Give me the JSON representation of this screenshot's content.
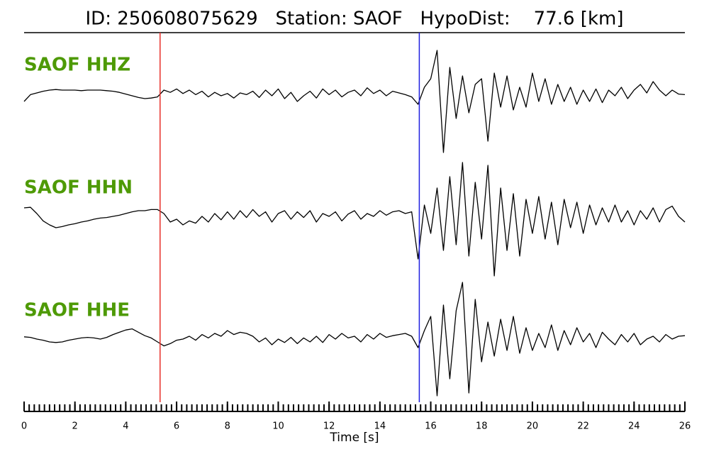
{
  "chart_data": {
    "type": "line",
    "title": "ID: 250608075629   Station: SAOF   HypoDist:    77.6 [km]",
    "xlabel": "Time [s]",
    "xlim": [
      0,
      26
    ],
    "xticks": [
      0,
      2,
      4,
      6,
      8,
      10,
      12,
      14,
      16,
      18,
      20,
      22,
      24,
      26
    ],
    "xminor": 0.2,
    "ylim": [
      -1,
      1
    ],
    "label_color": "#4e9a06",
    "vlines": [
      {
        "x": 5.35,
        "color": "#e8302a"
      },
      {
        "x": 15.55,
        "color": "#2020e0"
      }
    ],
    "x": [
      0,
      0.25,
      0.5,
      0.75,
      1,
      1.25,
      1.5,
      1.75,
      2,
      2.25,
      2.5,
      2.75,
      3,
      3.25,
      3.5,
      3.75,
      4,
      4.25,
      4.5,
      4.75,
      5,
      5.25,
      5.5,
      5.75,
      6,
      6.25,
      6.5,
      6.75,
      7,
      7.25,
      7.5,
      7.75,
      8,
      8.25,
      8.5,
      8.75,
      9,
      9.25,
      9.5,
      9.75,
      10,
      10.25,
      10.5,
      10.75,
      11,
      11.25,
      11.5,
      11.75,
      12,
      12.25,
      12.5,
      12.75,
      13,
      13.25,
      13.5,
      13.75,
      14,
      14.25,
      14.5,
      14.75,
      15,
      15.25,
      15.5,
      15.75,
      16,
      16.25,
      16.5,
      16.75,
      17,
      17.25,
      17.5,
      17.75,
      18,
      18.25,
      18.5,
      18.75,
      19,
      19.25,
      19.5,
      19.75,
      20,
      20.25,
      20.5,
      20.75,
      21,
      21.25,
      21.5,
      21.75,
      22,
      22.25,
      22.5,
      22.75,
      23,
      23.25,
      23.5,
      23.75,
      24,
      24.25,
      24.5,
      24.75,
      25,
      25.25,
      25.5,
      25.75,
      26
    ],
    "series": [
      {
        "name": "SAOF HHZ",
        "color": "#000000",
        "values": [
          -0.1,
          0.02,
          0.05,
          0.08,
          0.1,
          0.11,
          0.1,
          0.1,
          0.1,
          0.09,
          0.1,
          0.1,
          0.1,
          0.09,
          0.08,
          0.06,
          0.03,
          0.0,
          -0.03,
          -0.05,
          -0.04,
          -0.02,
          0.1,
          0.06,
          0.12,
          0.04,
          0.1,
          0.02,
          0.08,
          -0.02,
          0.06,
          0.0,
          0.04,
          -0.04,
          0.05,
          0.02,
          0.08,
          -0.03,
          0.1,
          0.0,
          0.12,
          -0.05,
          0.06,
          -0.1,
          0.0,
          0.08,
          -0.04,
          0.12,
          0.02,
          0.1,
          -0.02,
          0.06,
          0.1,
          0.0,
          0.14,
          0.04,
          0.1,
          0.0,
          0.08,
          0.05,
          0.02,
          -0.02,
          -0.15,
          0.15,
          0.3,
          0.8,
          -1.0,
          0.5,
          -0.4,
          0.35,
          -0.3,
          0.2,
          0.3,
          -0.8,
          0.4,
          -0.2,
          0.35,
          -0.25,
          0.15,
          -0.2,
          0.4,
          -0.1,
          0.3,
          -0.15,
          0.2,
          -0.1,
          0.15,
          -0.15,
          0.1,
          -0.1,
          0.12,
          -0.12,
          0.1,
          0.0,
          0.15,
          -0.05,
          0.1,
          0.2,
          0.05,
          0.25,
          0.1,
          0.0,
          0.1,
          0.03,
          0.02
        ]
      },
      {
        "name": "SAOF HHN",
        "color": "#000000",
        "values": [
          0.15,
          0.16,
          0.05,
          -0.08,
          -0.15,
          -0.2,
          -0.18,
          -0.15,
          -0.13,
          -0.1,
          -0.08,
          -0.05,
          -0.03,
          -0.02,
          0.0,
          0.02,
          0.05,
          0.08,
          0.1,
          0.1,
          0.12,
          0.12,
          0.05,
          -0.1,
          -0.05,
          -0.15,
          -0.08,
          -0.12,
          0.0,
          -0.1,
          0.05,
          -0.06,
          0.08,
          -0.05,
          0.1,
          -0.02,
          0.12,
          0.0,
          0.08,
          -0.1,
          0.05,
          0.1,
          -0.05,
          0.08,
          -0.02,
          0.1,
          -0.1,
          0.05,
          0.0,
          0.08,
          -0.08,
          0.04,
          0.1,
          -0.05,
          0.05,
          0.0,
          0.1,
          0.02,
          0.08,
          0.1,
          0.05,
          0.08,
          -0.75,
          0.2,
          -0.3,
          0.5,
          -0.6,
          0.7,
          -0.5,
          0.95,
          -0.7,
          0.6,
          -0.4,
          0.9,
          -1.05,
          0.5,
          -0.6,
          0.4,
          -0.7,
          0.3,
          -0.3,
          0.35,
          -0.4,
          0.25,
          -0.5,
          0.3,
          -0.2,
          0.25,
          -0.3,
          0.2,
          -0.15,
          0.15,
          -0.1,
          0.2,
          -0.1,
          0.1,
          -0.15,
          0.1,
          -0.05,
          0.15,
          -0.1,
          0.12,
          0.18,
          0.0,
          -0.1
        ]
      },
      {
        "name": "SAOF HHE",
        "color": "#000000",
        "values": [
          0.04,
          0.03,
          0.0,
          -0.02,
          -0.05,
          -0.06,
          -0.05,
          -0.02,
          0.0,
          0.02,
          0.03,
          0.02,
          0.0,
          0.03,
          0.08,
          0.12,
          0.16,
          0.18,
          0.12,
          0.06,
          0.02,
          -0.05,
          -0.12,
          -0.08,
          -0.02,
          0.0,
          0.05,
          -0.02,
          0.08,
          0.02,
          0.1,
          0.05,
          0.15,
          0.08,
          0.12,
          0.1,
          0.05,
          -0.05,
          0.02,
          -0.1,
          0.0,
          -0.06,
          0.03,
          -0.08,
          0.02,
          -0.05,
          0.05,
          -0.06,
          0.08,
          0.0,
          0.1,
          0.02,
          0.05,
          -0.05,
          0.08,
          0.0,
          0.1,
          0.03,
          0.06,
          0.08,
          0.1,
          0.05,
          -0.15,
          0.15,
          0.4,
          -1.0,
          0.6,
          -0.7,
          0.5,
          1.0,
          -0.95,
          0.7,
          -0.4,
          0.3,
          -0.3,
          0.35,
          -0.2,
          0.4,
          -0.25,
          0.2,
          -0.2,
          0.1,
          -0.15,
          0.25,
          -0.2,
          0.15,
          -0.1,
          0.2,
          -0.05,
          0.1,
          -0.15,
          0.12,
          0.0,
          -0.1,
          0.08,
          -0.05,
          0.1,
          -0.1,
          0.0,
          0.05,
          -0.05,
          0.08,
          0.0,
          0.05,
          0.06
        ]
      }
    ]
  }
}
